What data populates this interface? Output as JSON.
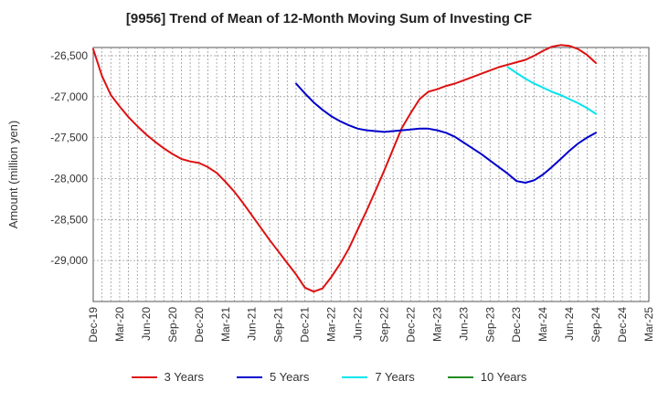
{
  "chart_data": {
    "type": "line",
    "title": "[9956]  Trend of Mean of 12-Month Moving Sum of Investing CF",
    "xlabel": "",
    "ylabel": "Amount (million yen)",
    "ylim": [
      -29500,
      -26400
    ],
    "yticks": [
      -26500,
      -27000,
      -27500,
      -28000,
      -28500,
      -29000
    ],
    "ytick_labels": [
      "-26,500",
      "-27,000",
      "-27,500",
      "-28,000",
      "-28,500",
      "-29,000"
    ],
    "xticks": [
      "Dec-19",
      "Mar-20",
      "Jun-20",
      "Sep-20",
      "Dec-20",
      "Mar-21",
      "Jun-21",
      "Sep-21",
      "Dec-21",
      "Mar-22",
      "Jun-22",
      "Sep-22",
      "Dec-22",
      "Mar-23",
      "Jun-23",
      "Sep-23",
      "Dec-23",
      "Mar-24",
      "Jun-24",
      "Sep-24",
      "Dec-24",
      "Mar-25"
    ],
    "grid": true,
    "legend_position": "bottom",
    "series": [
      {
        "name": "3 Years",
        "color": "#dd1111",
        "x": [
          "2019-12",
          "2020-01",
          "2020-02",
          "2020-03",
          "2020-04",
          "2020-05",
          "2020-06",
          "2020-07",
          "2020-08",
          "2020-09",
          "2020-10",
          "2020-11",
          "2020-12",
          "2021-01",
          "2021-02",
          "2021-03",
          "2021-04",
          "2021-05",
          "2021-06",
          "2021-07",
          "2021-08",
          "2021-09",
          "2021-10",
          "2021-11",
          "2021-12",
          "2022-01",
          "2022-02",
          "2022-03",
          "2022-04",
          "2022-05",
          "2022-06",
          "2022-07",
          "2022-08",
          "2022-09",
          "2022-10",
          "2022-11",
          "2022-12",
          "2023-01",
          "2023-02",
          "2023-03",
          "2023-04",
          "2023-05",
          "2023-06",
          "2023-07",
          "2023-08",
          "2023-09",
          "2023-10",
          "2023-11",
          "2023-12",
          "2024-01",
          "2024-02",
          "2024-03",
          "2024-04",
          "2024-05",
          "2024-06",
          "2024-07",
          "2024-08",
          "2024-09"
        ],
        "values": [
          -26420,
          -26750,
          -26980,
          -27120,
          -27250,
          -27360,
          -27460,
          -27550,
          -27630,
          -27700,
          -27760,
          -27790,
          -27810,
          -27860,
          -27930,
          -28040,
          -28160,
          -28300,
          -28450,
          -28600,
          -28750,
          -28890,
          -29030,
          -29170,
          -29330,
          -29380,
          -29340,
          -29200,
          -29040,
          -28850,
          -28620,
          -28390,
          -28150,
          -27900,
          -27640,
          -27380,
          -27200,
          -27030,
          -26940,
          -26910,
          -26870,
          -26840,
          -26800,
          -26760,
          -26720,
          -26680,
          -26640,
          -26610,
          -26580,
          -26550,
          -26500,
          -26440,
          -26390,
          -26370,
          -26380,
          -26420,
          -26490,
          -26590
        ]
      },
      {
        "name": "5 Years",
        "color": "#0000cc",
        "x": [
          "2021-11",
          "2021-12",
          "2022-01",
          "2022-02",
          "2022-03",
          "2022-04",
          "2022-05",
          "2022-06",
          "2022-07",
          "2022-08",
          "2022-09",
          "2022-10",
          "2022-11",
          "2022-12",
          "2023-01",
          "2023-02",
          "2023-03",
          "2023-04",
          "2023-05",
          "2023-06",
          "2023-07",
          "2023-08",
          "2023-09",
          "2023-10",
          "2023-11",
          "2023-12",
          "2024-01",
          "2024-02",
          "2024-03",
          "2024-04",
          "2024-05",
          "2024-06",
          "2024-07",
          "2024-08",
          "2024-09"
        ],
        "values": [
          -26840,
          -26960,
          -27070,
          -27160,
          -27240,
          -27300,
          -27350,
          -27390,
          -27410,
          -27420,
          -27430,
          -27420,
          -27410,
          -27400,
          -27390,
          -27390,
          -27410,
          -27440,
          -27490,
          -27560,
          -27630,
          -27700,
          -27780,
          -27860,
          -27940,
          -28030,
          -28050,
          -28020,
          -27950,
          -27860,
          -27760,
          -27660,
          -27570,
          -27500,
          -27440
        ]
      },
      {
        "name": "7 Years",
        "color": "#00e5ee",
        "x": [
          "2023-11",
          "2023-12",
          "2024-01",
          "2024-02",
          "2024-03",
          "2024-04",
          "2024-05",
          "2024-06",
          "2024-07",
          "2024-08",
          "2024-09"
        ],
        "values": [
          -26640,
          -26710,
          -26780,
          -26840,
          -26890,
          -26940,
          -26980,
          -27030,
          -27080,
          -27140,
          -27210
        ]
      },
      {
        "name": "10 Years",
        "color": "#228b22",
        "x": [],
        "values": []
      }
    ]
  }
}
